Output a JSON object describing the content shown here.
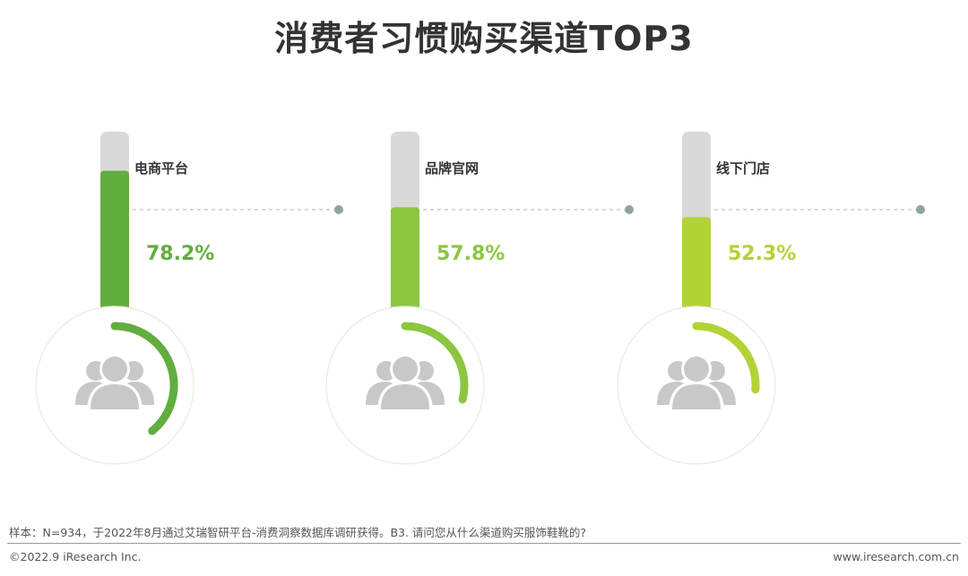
{
  "title": "消费者习惯购买渠道TOP3",
  "chart_data": {
    "type": "bar",
    "title": "消费者习惯购买渠道TOP3",
    "categories": [
      "电商平台",
      "品牌官网",
      "线下门店"
    ],
    "values": [
      78.2,
      57.8,
      52.3
    ],
    "value_labels": [
      "78.2%",
      "57.8%",
      "52.3%"
    ],
    "unit": "%",
    "ylim": [
      0,
      100
    ],
    "colors": [
      "#62ad3f",
      "#8cc63f",
      "#b3d235"
    ],
    "track_color": "#d9d9d9",
    "icon": "people-group-icon"
  },
  "footer": {
    "source": "样本：N=934，于2022年8月通过艾瑞智研平台-消费洞察数据库调研获得。B3. 请问您从什么渠道购买服饰鞋靴的?",
    "copyright": "©2022.9 iResearch Inc.",
    "website": "www.iresearch.com.cn"
  }
}
